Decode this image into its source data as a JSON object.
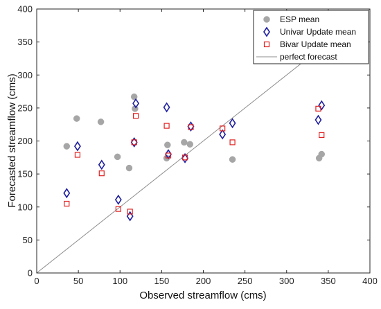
{
  "chart_data": {
    "type": "scatter",
    "xlabel": "Observed streamflow (cms)",
    "ylabel": "Forecasted streamflow (cms)",
    "xlim": [
      0,
      400
    ],
    "ylim": [
      0,
      400
    ],
    "xticks": [
      0,
      50,
      100,
      150,
      200,
      250,
      300,
      350,
      400
    ],
    "yticks": [
      0,
      50,
      100,
      150,
      200,
      250,
      300,
      350,
      400
    ],
    "grid": false,
    "legend_position": "top-right",
    "series": [
      {
        "name": "ESP mean",
        "marker": "circle",
        "color": "#a6a6a6",
        "points": [
          [
            36,
            192
          ],
          [
            48,
            234
          ],
          [
            77,
            229
          ],
          [
            97,
            176
          ],
          [
            111,
            159
          ],
          [
            117,
            267
          ],
          [
            118,
            249
          ],
          [
            156,
            174
          ],
          [
            157,
            194
          ],
          [
            177,
            198
          ],
          [
            184,
            195
          ],
          [
            235,
            172
          ],
          [
            339,
            174
          ],
          [
            342,
            180
          ]
        ]
      },
      {
        "name": "Univar Update mean",
        "marker": "diamond",
        "color": "#1f1fa0",
        "points": [
          [
            36,
            121
          ],
          [
            49,
            192
          ],
          [
            78,
            164
          ],
          [
            98,
            111
          ],
          [
            112,
            86
          ],
          [
            117,
            198
          ],
          [
            119,
            257
          ],
          [
            156,
            251
          ],
          [
            158,
            180
          ],
          [
            178,
            174
          ],
          [
            185,
            222
          ],
          [
            223,
            210
          ],
          [
            235,
            227
          ],
          [
            338,
            232
          ],
          [
            342,
            254
          ]
        ]
      },
      {
        "name": "Bivar Update mean",
        "marker": "square",
        "color": "#e02020",
        "points": [
          [
            36,
            105
          ],
          [
            49,
            179
          ],
          [
            78,
            151
          ],
          [
            98,
            97
          ],
          [
            112,
            93
          ],
          [
            117,
            198
          ],
          [
            119,
            238
          ],
          [
            156,
            223
          ],
          [
            158,
            178
          ],
          [
            178,
            175
          ],
          [
            185,
            221
          ],
          [
            223,
            219
          ],
          [
            235,
            198
          ],
          [
            338,
            249
          ],
          [
            342,
            209
          ]
        ]
      }
    ],
    "reference_line": {
      "name": "perfect forecast",
      "color": "#8c8c8c",
      "from": [
        0,
        0
      ],
      "to": [
        400,
        400
      ]
    }
  }
}
